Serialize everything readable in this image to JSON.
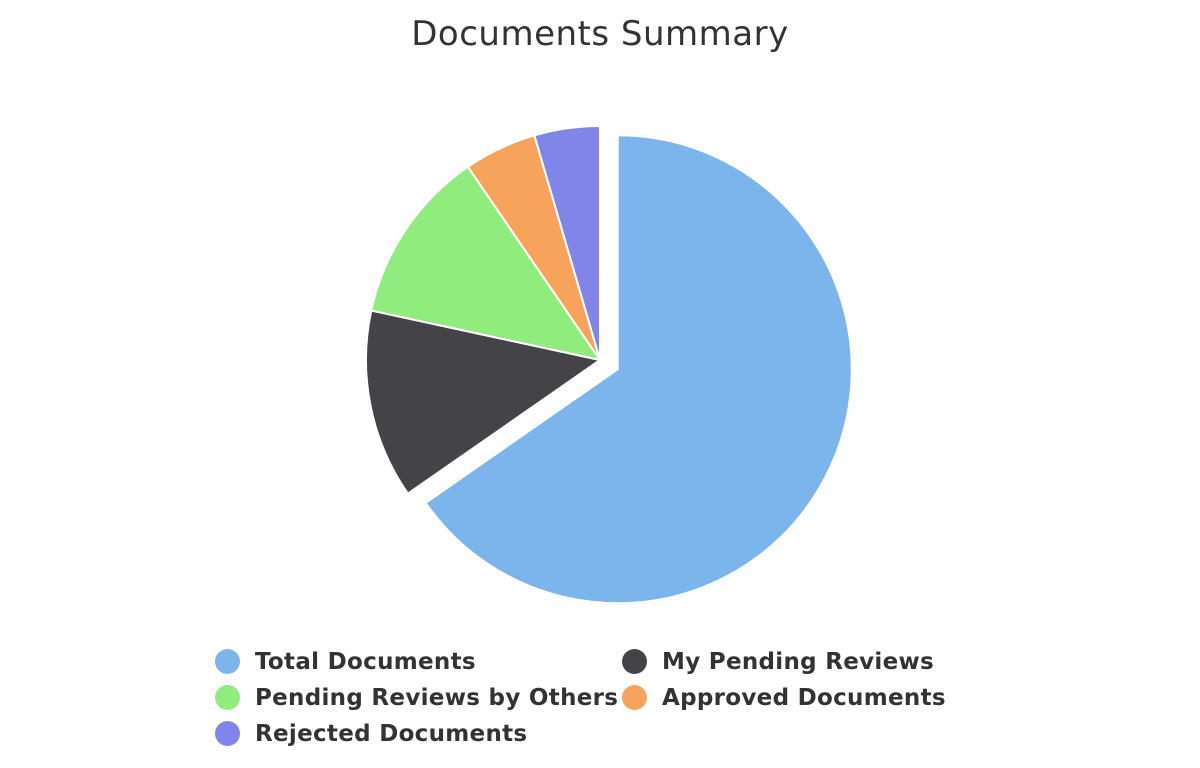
{
  "chart_data": {
    "type": "pie",
    "title": "Documents Summary",
    "slices": [
      {
        "name": "Total Documents",
        "value": 65,
        "color": "#7cb5ec",
        "sliced": true
      },
      {
        "name": "My Pending Reviews",
        "value": 13,
        "color": "#434348",
        "sliced": false
      },
      {
        "name": "Pending Reviews by Others",
        "value": 12,
        "color": "#90ed7d",
        "sliced": false
      },
      {
        "name": "Approved Documents",
        "value": 5,
        "color": "#f7a35c",
        "sliced": false
      },
      {
        "name": "Rejected Documents",
        "value": 4.5,
        "color": "#8085e9",
        "sliced": false
      }
    ],
    "legend_placement": "bottom"
  }
}
